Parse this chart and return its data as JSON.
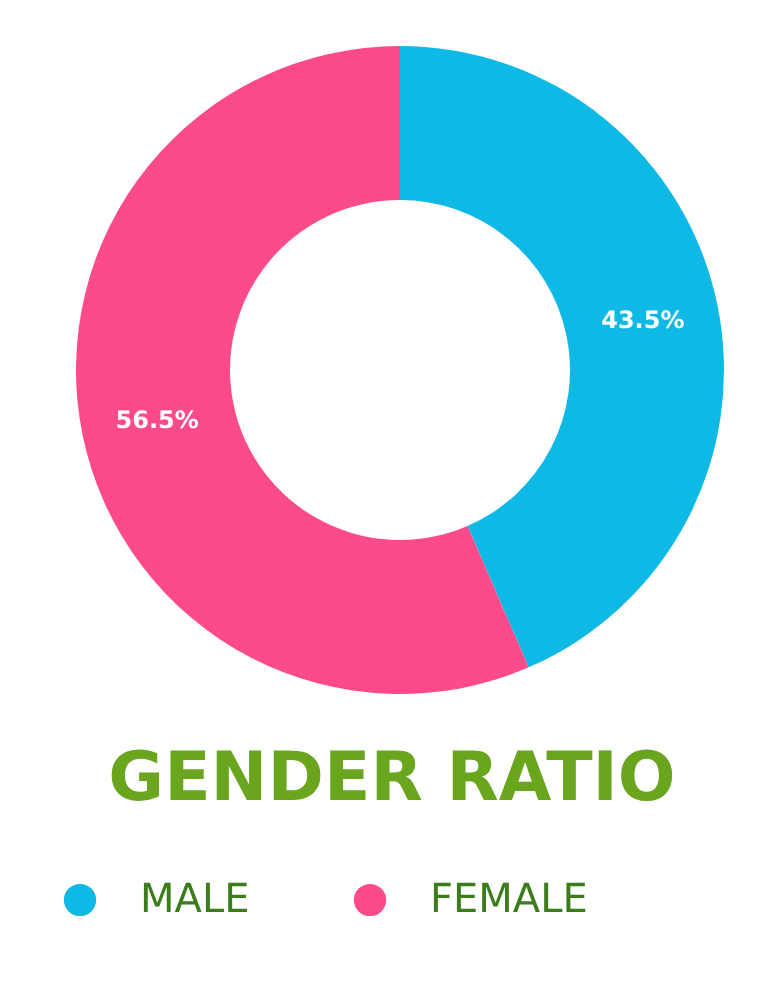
{
  "chart_data": {
    "type": "donut",
    "title": "GENDER RATIO",
    "categories": [
      "MALE",
      "FEMALE"
    ],
    "values": [
      43.5,
      56.5
    ],
    "colors": [
      "#0fb9e6",
      "#fd4a8b"
    ],
    "value_labels": [
      "43.5%",
      "56.5%"
    ],
    "legend": "bottom"
  }
}
